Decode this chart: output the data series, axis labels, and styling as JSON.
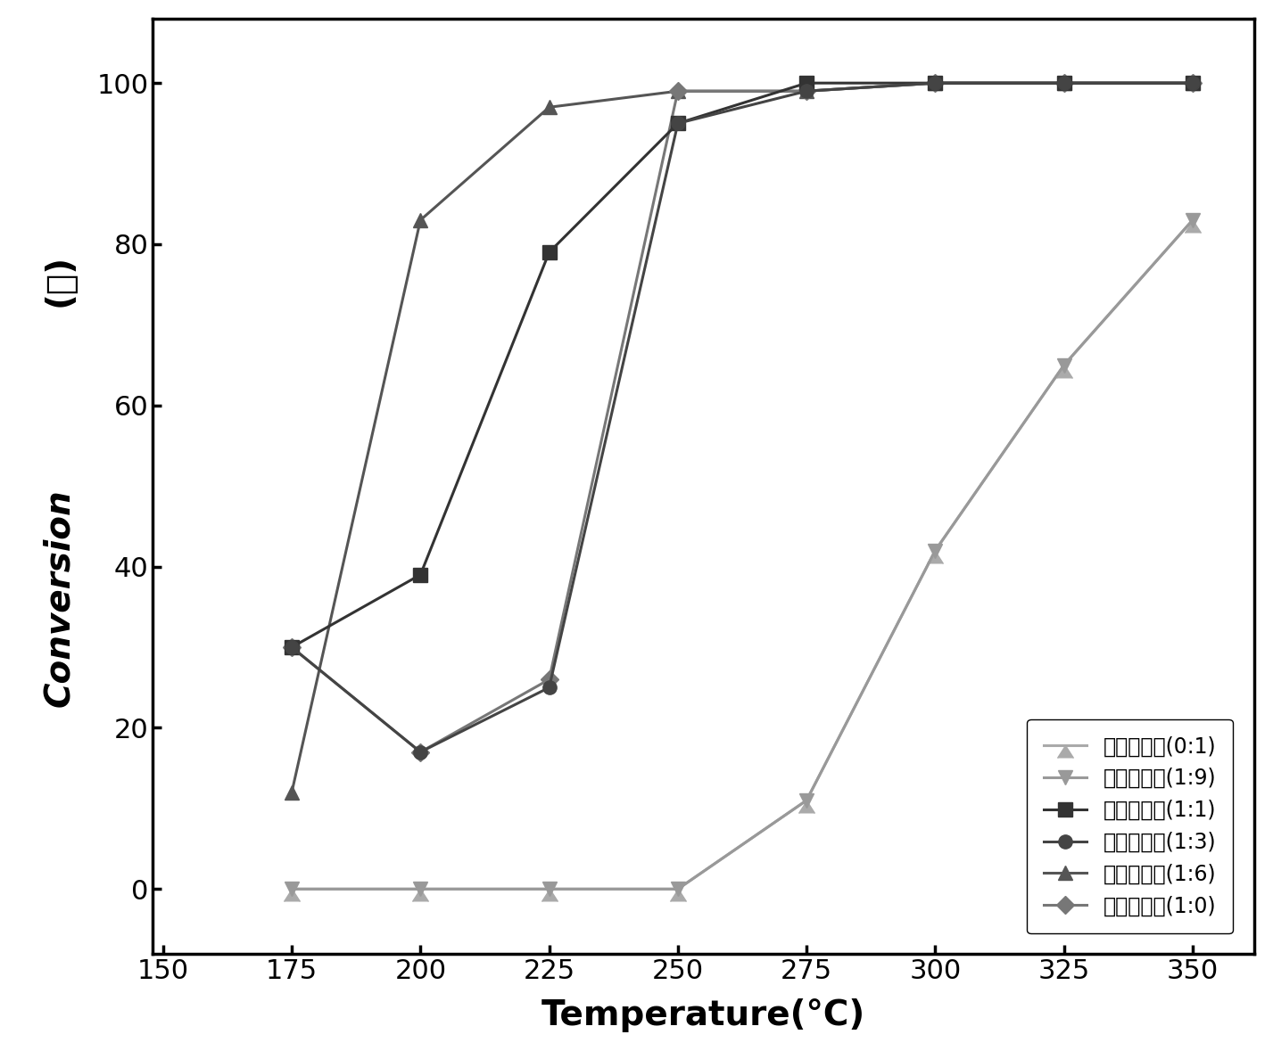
{
  "series": [
    {
      "label_cn": "复合催化剂",
      "label_ratio": "(1:1)",
      "x": [
        175,
        200,
        225,
        250,
        275,
        300,
        325,
        350
      ],
      "y": [
        30,
        39,
        79,
        95,
        100,
        100,
        100,
        100
      ],
      "color": "#333333",
      "marker": "s",
      "markersize": 11,
      "linewidth": 2.2,
      "zorder": 5
    },
    {
      "label_cn": "复合催化剂",
      "label_ratio": "(1:3)",
      "x": [
        175,
        200,
        225,
        250,
        275,
        300,
        325,
        350
      ],
      "y": [
        30,
        17,
        25,
        95,
        99,
        100,
        100,
        100
      ],
      "color": "#444444",
      "marker": "o",
      "markersize": 11,
      "linewidth": 2.2,
      "zorder": 5
    },
    {
      "label_cn": "复合催化剂",
      "label_ratio": "(1:6)",
      "x": [
        175,
        200,
        225,
        250,
        275,
        300,
        325,
        350
      ],
      "y": [
        12,
        83,
        97,
        99,
        99,
        100,
        100,
        100
      ],
      "color": "#555555",
      "marker": "^",
      "markersize": 11,
      "linewidth": 2.2,
      "zorder": 4
    },
    {
      "label_cn": "复合催化剂",
      "label_ratio": "(1:9)",
      "x": [
        175,
        200,
        225,
        250,
        275,
        300,
        325,
        350
      ],
      "y": [
        0,
        0,
        0,
        0,
        11,
        42,
        65,
        83
      ],
      "color": "#999999",
      "marker": "v",
      "markersize": 11,
      "linewidth": 2.2,
      "zorder": 3
    },
    {
      "label_cn": "复合催化剂",
      "label_ratio": "(1:0)",
      "x": [
        175,
        200,
        225,
        250,
        275,
        300,
        325,
        350
      ],
      "y": [
        30,
        17,
        26,
        99,
        99,
        100,
        100,
        100
      ],
      "color": "#777777",
      "marker": "D",
      "markersize": 10,
      "linewidth": 2.2,
      "zorder": 4
    },
    {
      "label_cn": "复合催化剂",
      "label_ratio": "(0:1)",
      "x": [
        175,
        200,
        225,
        250,
        275,
        300,
        325,
        350
      ],
      "y": [
        0,
        0,
        0,
        0,
        11,
        42,
        65,
        83
      ],
      "color": "#aaaaaa",
      "marker": 6,
      "markersize": 13,
      "linewidth": 2.2,
      "zorder": 2
    }
  ],
  "xlim": [
    148,
    362
  ],
  "ylim": [
    -8,
    108
  ],
  "xticks": [
    150,
    175,
    200,
    225,
    250,
    275,
    300,
    325,
    350
  ],
  "yticks": [
    0,
    20,
    40,
    60,
    80,
    100
  ],
  "xlabel": "Temperature(°C)",
  "ylabel_top": "Conversion",
  "ylabel_pct": "(％)",
  "tick_fontsize": 22,
  "xlabel_fontsize": 28,
  "ylabel_fontsize": 28,
  "legend_fontsize": 17
}
